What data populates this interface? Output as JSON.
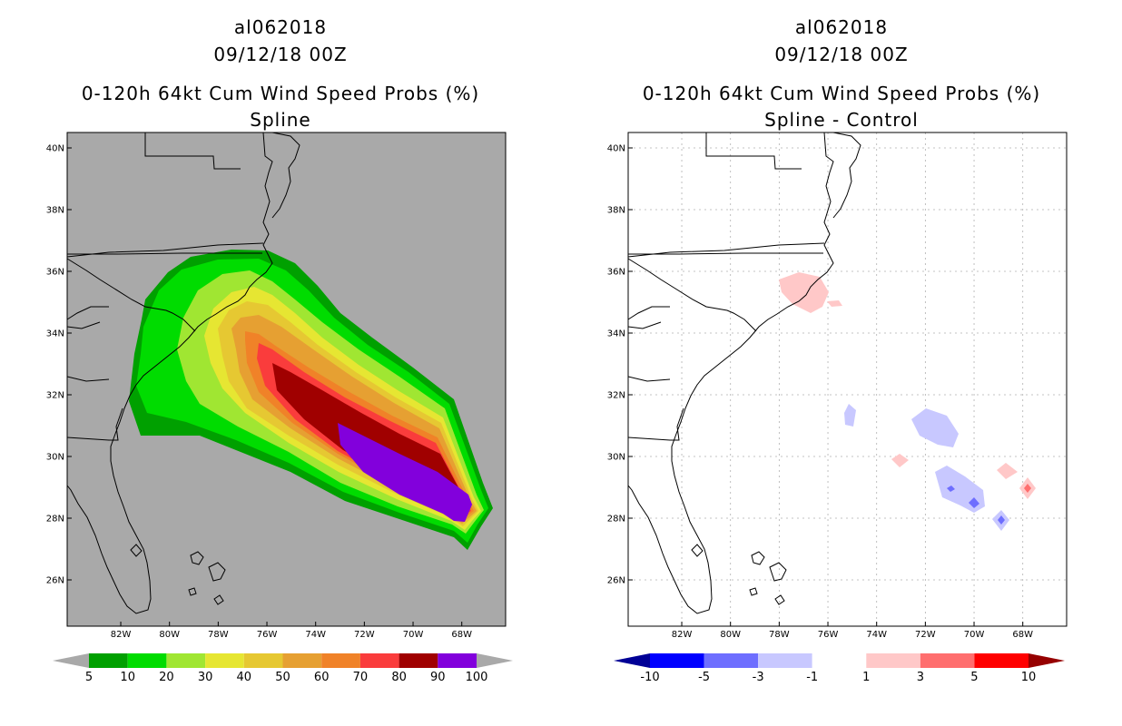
{
  "left": {
    "title_line1": "al062018",
    "title_line2": "09/12/18 00Z",
    "title_line3": "0-120h 64kt Cum Wind Speed Probs (%)",
    "title_line4": "Spline",
    "background_color": "#a9a9a9",
    "colorbar": {
      "colors": [
        "#00a000",
        "#00dc00",
        "#a0e632",
        "#e6e632",
        "#e6c832",
        "#e6a032",
        "#f08228",
        "#fa3c3c",
        "#a00000",
        "#8200dc"
      ],
      "end_low": "#a9a9a9",
      "end_high": "#a9a9a9",
      "labels": [
        "5",
        "10",
        "20",
        "30",
        "40",
        "50",
        "60",
        "70",
        "80",
        "90",
        "100"
      ]
    }
  },
  "right": {
    "title_line1": "al062018",
    "title_line2": "09/12/18 00Z",
    "title_line3": "0-120h 64kt Cum Wind Speed Probs (%)",
    "title_line4": "Spline - Control",
    "background_color": "#ffffff",
    "colorbar": {
      "colors": [
        "#0000ff",
        "#6e6eff",
        "#c8c8ff",
        "#ffffff",
        "#ffc8c8",
        "#ff6e6e",
        "#ff0000"
      ],
      "end_low": "#000096",
      "end_high": "#960000",
      "labels": [
        "-10",
        "-5",
        "-3",
        "-1",
        "1",
        "3",
        "5",
        "10"
      ]
    }
  },
  "axes": {
    "lon_ticks": [
      "82W",
      "80W",
      "78W",
      "76W",
      "74W",
      "72W",
      "70W",
      "68W"
    ],
    "lat_ticks": [
      "40N",
      "38N",
      "36N",
      "34N",
      "32N",
      "30N",
      "28N",
      "26N"
    ],
    "lon_values": [
      -82,
      -80,
      -78,
      -76,
      -74,
      -72,
      -70,
      -68
    ],
    "lat_values": [
      40,
      38,
      36,
      34,
      32,
      30,
      28,
      26
    ],
    "lon_range": [
      -84.2,
      -66.2
    ],
    "lat_range": [
      24.5,
      40.5
    ]
  },
  "probability_swath": {
    "storm": "al062018",
    "levels": [
      5,
      10,
      20,
      30,
      40,
      50,
      60,
      70,
      80,
      90
    ]
  },
  "difference_areas": [
    {
      "sign": "positive",
      "level": 1
    },
    {
      "sign": "negative",
      "level": -1
    }
  ]
}
